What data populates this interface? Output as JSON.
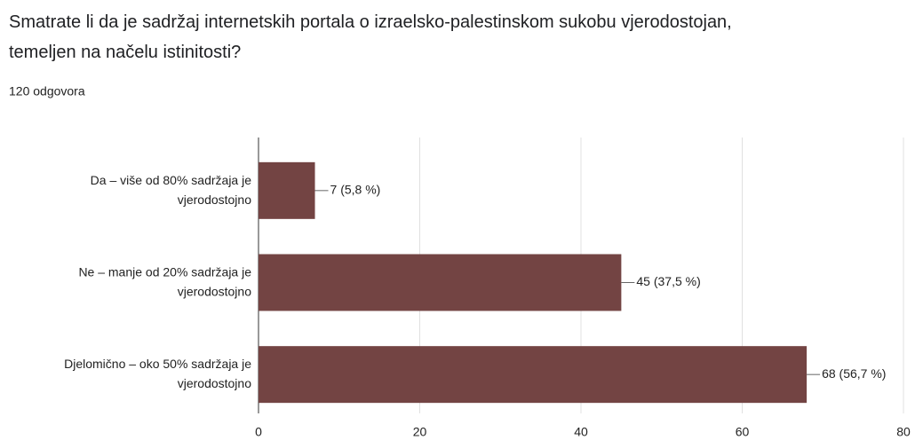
{
  "chart_data": {
    "type": "barh",
    "title": "Smatrate li da je sadržaj internetskih portala o izraelsko-palestinskom sukobu vjerodostojan, temeljen na načelu istinitosti?",
    "subtitle": "120 odgovora",
    "categories": [
      "Da – više od 80% sadržaja je vjerodostojno",
      "Ne – manje od 20% sadržaja je vjerodostojno",
      "Djelomično – oko 50% sadržaja je vjerodostojno"
    ],
    "values": [
      7,
      45,
      68
    ],
    "value_labels": [
      "7 (5,8 %)",
      "45 (37,5 %)",
      "68 (56,7 %)"
    ],
    "color": "#734443",
    "xlim": [
      0,
      80
    ],
    "xticks": [
      0,
      20,
      40,
      60,
      80
    ],
    "grid": true
  }
}
